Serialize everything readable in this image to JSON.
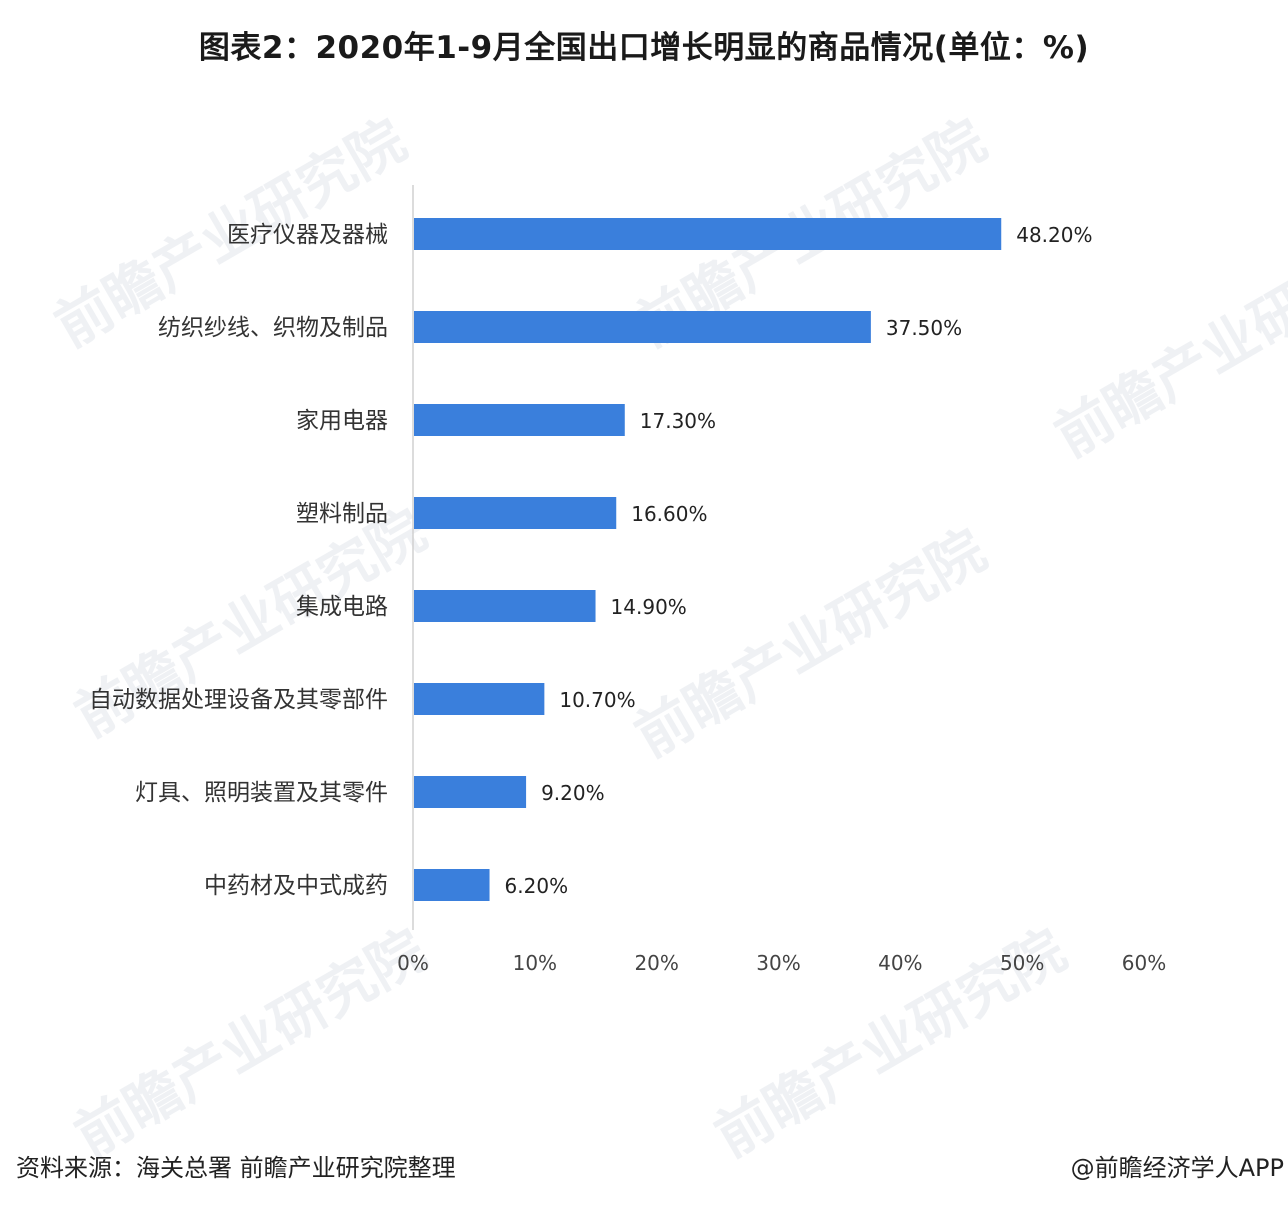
{
  "title": "图表2：2020年1-9月全国出口增长明显的商品情况(单位：%)",
  "source": "资料来源：海关总署   前瞻产业研究院整理",
  "credit": "@前瞻经济学人APP",
  "watermark_text": "前瞻产业研究院",
  "colors": {
    "bar": "#3a7fdc",
    "axis": "#d0d0d0"
  },
  "chart_data": {
    "type": "bar",
    "orientation": "horizontal",
    "categories": [
      "医疗仪器及器械",
      "纺织纱线、织物及制品",
      "家用电器",
      "塑料制品",
      "集成电路",
      "自动数据处理设备及其零部件",
      "灯具、照明装置及其零件",
      "中药材及中式成药"
    ],
    "values": [
      48.2,
      37.5,
      17.3,
      16.6,
      14.9,
      10.7,
      9.2,
      6.2
    ],
    "value_labels": [
      "48.20%",
      "37.50%",
      "17.30%",
      "16.60%",
      "14.90%",
      "10.70%",
      "9.20%",
      "6.20%"
    ],
    "xlim": [
      0,
      60
    ],
    "xticks": [
      0,
      10,
      20,
      30,
      40,
      50,
      60
    ],
    "xtick_labels": [
      "0%",
      "10%",
      "20%",
      "30%",
      "40%",
      "50%",
      "60%"
    ],
    "grid": false,
    "legend": "none"
  }
}
